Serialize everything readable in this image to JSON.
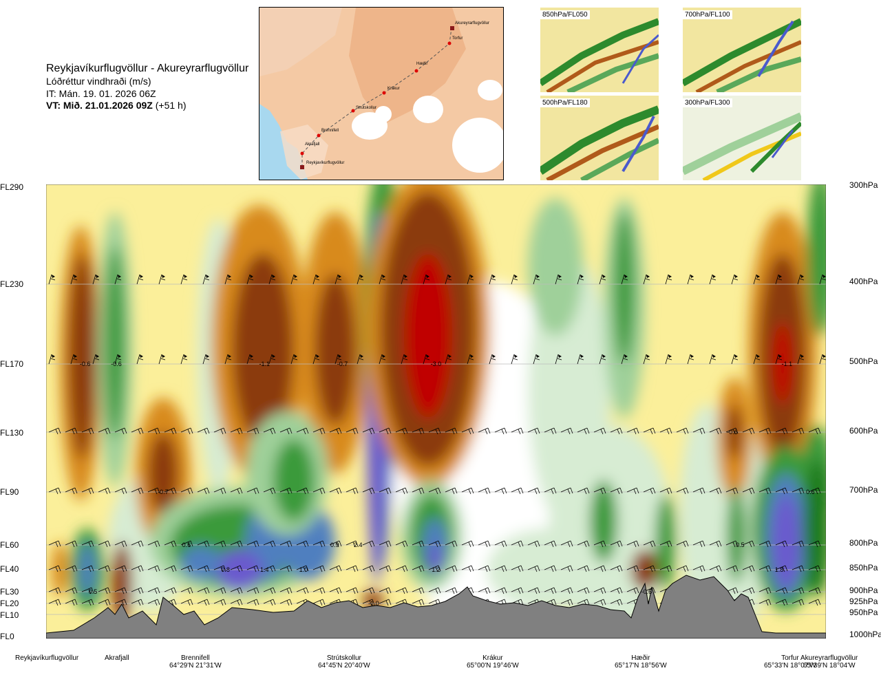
{
  "header": {
    "title": "Reykjavíkurflugvöllur - Akureyrarflugvöllur",
    "subtitle": "Lóðréttur vindhraði (m/s)",
    "issue_time": "IT: Mán. 19. 01. 2026 06Z",
    "valid_time_bold": "VT: Mið. 21.01.2026 09Z",
    "valid_time_suffix": " (+51 h)"
  },
  "map": {
    "route_points": [
      "Akureyrarflugvöllur",
      "Torfur",
      "Hæðir",
      "Krákur",
      "Strútskollur",
      "Brennifell",
      "Akrafjall",
      "Reykjavíkurflugvöllur"
    ]
  },
  "thumbnails": [
    {
      "label": "850hPa/FL050"
    },
    {
      "label": "700hPa/FL100"
    },
    {
      "label": "500hPa/FL180"
    },
    {
      "label": "300hPa/FL300"
    }
  ],
  "chart_data": {
    "type": "heatmap",
    "title": "Reykjavíkurflugvöllur - Akureyrarflugvöllur",
    "left_axis_labels": [
      "FL290",
      "FL230",
      "FL170",
      "FL130",
      "FL90",
      "FL60",
      "FL40",
      "FL30",
      "FL20",
      "FL10",
      "FL0"
    ],
    "right_axis_labels": [
      "300hPa",
      "400hPa",
      "500hPa",
      "600hPa",
      "700hPa",
      "800hPa",
      "850hPa",
      "900hPa",
      "925hPa",
      "950hPa",
      "1000hPa"
    ],
    "stations": [
      {
        "name": "Reykjavíkurflugvöllur",
        "coord": ""
      },
      {
        "name": "Akrafjall",
        "coord": ""
      },
      {
        "name": "Brennifell",
        "coord": "64°29'N 21°31'W"
      },
      {
        "name": "Strútskollur",
        "coord": "64°45'N 20°40'W"
      },
      {
        "name": "Krákur",
        "coord": "65°00'N 19°46'W"
      },
      {
        "name": "Hæðir",
        "coord": "65°17'N 18°56'W"
      },
      {
        "name": "Torfur",
        "coord": "65°33'N 18°07'W"
      },
      {
        "name": "Akureyrarflugvöllur",
        "coord": "65°39'N 18°04'W"
      }
    ],
    "value_labels": [
      {
        "text": "-0.6",
        "x": 0.05,
        "level": "FL170"
      },
      {
        "text": "-0.6",
        "x": 0.09,
        "level": "FL170"
      },
      {
        "text": "-1.1",
        "x": 0.28,
        "level": "FL170"
      },
      {
        "text": "-0.7",
        "x": 0.38,
        "level": "FL170"
      },
      {
        "text": "-3.0",
        "x": 0.5,
        "level": "FL170"
      },
      {
        "text": "-1.1",
        "x": 0.95,
        "level": "FL170"
      },
      {
        "text": "-0.6",
        "x": 0.88,
        "level": "FL130"
      },
      {
        "text": "-0.7",
        "x": 0.15,
        "level": "FL90"
      },
      {
        "text": "0.6",
        "x": 0.98,
        "level": "FL90"
      },
      {
        "text": "0.6",
        "x": 0.18,
        "level": "FL60"
      },
      {
        "text": "0.9",
        "x": 0.37,
        "level": "FL60"
      },
      {
        "text": "2.4",
        "x": 0.4,
        "level": "FL60"
      },
      {
        "text": "0.5",
        "x": 0.89,
        "level": "FL60"
      },
      {
        "text": "0.8",
        "x": 0.23,
        "level": "FL40"
      },
      {
        "text": "1.4",
        "x": 0.28,
        "level": "FL40"
      },
      {
        "text": "1.0",
        "x": 0.33,
        "level": "FL40"
      },
      {
        "text": "1.2",
        "x": 0.5,
        "level": "FL40"
      },
      {
        "text": "1.8",
        "x": 0.94,
        "level": "FL40"
      },
      {
        "text": "0.5",
        "x": 0.06,
        "level": "FL30"
      },
      {
        "text": "-0.6",
        "x": 0.77,
        "level": "FL30"
      },
      {
        "text": "-1.0",
        "x": 0.42,
        "level": "FL20"
      }
    ],
    "colors": {
      "strong_down": "#c00000",
      "down": "#8b3a0f",
      "moderate_down": "#d88a1a",
      "weak_down": "#f0c81a",
      "very_weak_down": "#fbef9a",
      "neutral": "#ffffff",
      "very_weak_up": "#d7ecd3",
      "weak_up": "#9fd09a",
      "moderate_up": "#3a9a3a",
      "up": "#1f7a1f",
      "strong_up": "#4f7fbf",
      "very_strong_up": "#6a5acd",
      "terrain": "#808080"
    }
  }
}
